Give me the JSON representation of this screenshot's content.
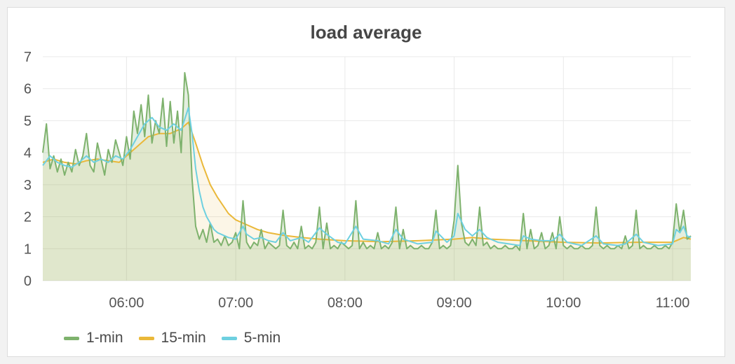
{
  "panel": {
    "title": "load average"
  },
  "chart_data": {
    "type": "line",
    "title": "load average",
    "xlabel": "",
    "ylabel": "",
    "ylim": [
      0,
      7
    ],
    "yticks": [
      "0",
      "1",
      "2",
      "3",
      "4",
      "5",
      "6",
      "7"
    ],
    "xticks": [
      "06:00",
      "07:00",
      "08:00",
      "09:00",
      "10:00",
      "11:00"
    ],
    "grid": true,
    "legend_position": "bottom-left",
    "series": [
      {
        "name": "1-min",
        "color": "#7eb26d",
        "fill": true,
        "points": [
          [
            "05:14",
            4.0
          ],
          [
            "05:16",
            4.9
          ],
          [
            "05:18",
            3.5
          ],
          [
            "05:20",
            3.9
          ],
          [
            "05:22",
            3.4
          ],
          [
            "05:24",
            3.8
          ],
          [
            "05:26",
            3.3
          ],
          [
            "05:28",
            3.7
          ],
          [
            "05:30",
            3.4
          ],
          [
            "05:32",
            4.1
          ],
          [
            "05:34",
            3.6
          ],
          [
            "05:36",
            3.9
          ],
          [
            "05:38",
            4.6
          ],
          [
            "05:40",
            3.6
          ],
          [
            "05:42",
            3.4
          ],
          [
            "05:44",
            4.3
          ],
          [
            "05:46",
            3.8
          ],
          [
            "05:48",
            3.3
          ],
          [
            "05:50",
            4.1
          ],
          [
            "05:52",
            3.7
          ],
          [
            "05:54",
            4.4
          ],
          [
            "05:56",
            4.0
          ],
          [
            "05:58",
            3.6
          ],
          [
            "06:00",
            4.5
          ],
          [
            "06:02",
            3.8
          ],
          [
            "06:04",
            5.3
          ],
          [
            "06:06",
            4.6
          ],
          [
            "06:08",
            5.5
          ],
          [
            "06:10",
            4.5
          ],
          [
            "06:12",
            5.8
          ],
          [
            "06:14",
            4.3
          ],
          [
            "06:16",
            5.0
          ],
          [
            "06:18",
            4.6
          ],
          [
            "06:20",
            5.7
          ],
          [
            "06:22",
            4.2
          ],
          [
            "06:24",
            5.6
          ],
          [
            "06:26",
            4.3
          ],
          [
            "06:28",
            5.3
          ],
          [
            "06:30",
            4.0
          ],
          [
            "06:32",
            6.5
          ],
          [
            "06:34",
            5.8
          ],
          [
            "06:36",
            3.2
          ],
          [
            "06:38",
            1.7
          ],
          [
            "06:40",
            1.3
          ],
          [
            "06:42",
            1.6
          ],
          [
            "06:44",
            1.2
          ],
          [
            "06:46",
            1.8
          ],
          [
            "06:48",
            1.2
          ],
          [
            "06:50",
            1.3
          ],
          [
            "06:52",
            1.1
          ],
          [
            "06:54",
            1.4
          ],
          [
            "06:56",
            1.1
          ],
          [
            "06:58",
            1.2
          ],
          [
            "07:00",
            1.5
          ],
          [
            "07:02",
            1.0
          ],
          [
            "07:04",
            2.5
          ],
          [
            "07:06",
            1.2
          ],
          [
            "07:08",
            1.0
          ],
          [
            "07:10",
            1.2
          ],
          [
            "07:12",
            1.1
          ],
          [
            "07:14",
            1.6
          ],
          [
            "07:16",
            1.0
          ],
          [
            "07:18",
            1.2
          ],
          [
            "07:20",
            1.1
          ],
          [
            "07:22",
            1.0
          ],
          [
            "07:24",
            1.1
          ],
          [
            "07:26",
            2.2
          ],
          [
            "07:28",
            1.1
          ],
          [
            "07:30",
            1.0
          ],
          [
            "07:32",
            1.2
          ],
          [
            "07:34",
            1.0
          ],
          [
            "07:36",
            1.7
          ],
          [
            "07:38",
            1.0
          ],
          [
            "07:40",
            1.1
          ],
          [
            "07:42",
            1.0
          ],
          [
            "07:44",
            1.2
          ],
          [
            "07:46",
            2.3
          ],
          [
            "07:48",
            1.0
          ],
          [
            "07:50",
            1.8
          ],
          [
            "07:52",
            1.0
          ],
          [
            "07:54",
            1.1
          ],
          [
            "07:56",
            1.0
          ],
          [
            "07:58",
            1.2
          ],
          [
            "08:00",
            1.1
          ],
          [
            "08:02",
            1.0
          ],
          [
            "08:04",
            1.1
          ],
          [
            "08:06",
            2.5
          ],
          [
            "08:08",
            1.0
          ],
          [
            "08:10",
            1.2
          ],
          [
            "08:12",
            1.0
          ],
          [
            "08:14",
            1.1
          ],
          [
            "08:16",
            1.0
          ],
          [
            "08:18",
            1.5
          ],
          [
            "08:20",
            1.0
          ],
          [
            "08:22",
            1.1
          ],
          [
            "08:24",
            1.0
          ],
          [
            "08:26",
            1.2
          ],
          [
            "08:28",
            2.3
          ],
          [
            "08:30",
            1.0
          ],
          [
            "08:32",
            1.6
          ],
          [
            "08:34",
            1.0
          ],
          [
            "08:36",
            1.1
          ],
          [
            "08:38",
            1.0
          ],
          [
            "08:40",
            1.0
          ],
          [
            "08:42",
            1.1
          ],
          [
            "08:44",
            1.0
          ],
          [
            "08:46",
            1.0
          ],
          [
            "08:48",
            1.2
          ],
          [
            "08:50",
            2.2
          ],
          [
            "08:52",
            1.0
          ],
          [
            "08:54",
            1.1
          ],
          [
            "08:56",
            1.0
          ],
          [
            "08:58",
            1.1
          ],
          [
            "09:00",
            1.9
          ],
          [
            "09:02",
            3.6
          ],
          [
            "09:04",
            1.8
          ],
          [
            "09:06",
            1.2
          ],
          [
            "09:08",
            1.1
          ],
          [
            "09:10",
            1.3
          ],
          [
            "09:12",
            1.1
          ],
          [
            "09:14",
            2.3
          ],
          [
            "09:16",
            1.1
          ],
          [
            "09:18",
            1.2
          ],
          [
            "09:20",
            1.0
          ],
          [
            "09:22",
            1.1
          ],
          [
            "09:24",
            1.0
          ],
          [
            "09:26",
            1.0
          ],
          [
            "09:28",
            1.1
          ],
          [
            "09:30",
            1.0
          ],
          [
            "09:32",
            1.0
          ],
          [
            "09:34",
            1.1
          ],
          [
            "09:36",
            0.95
          ],
          [
            "09:38",
            2.1
          ],
          [
            "09:40",
            1.0
          ],
          [
            "09:42",
            1.6
          ],
          [
            "09:44",
            1.0
          ],
          [
            "09:46",
            1.1
          ],
          [
            "09:48",
            1.5
          ],
          [
            "09:50",
            1.0
          ],
          [
            "09:52",
            1.1
          ],
          [
            "09:54",
            1.5
          ],
          [
            "09:56",
            1.0
          ],
          [
            "09:58",
            2.0
          ],
          [
            "10:00",
            1.1
          ],
          [
            "10:02",
            1.0
          ],
          [
            "10:04",
            1.1
          ],
          [
            "10:06",
            1.0
          ],
          [
            "10:08",
            1.0
          ],
          [
            "10:10",
            1.1
          ],
          [
            "10:12",
            1.0
          ],
          [
            "10:14",
            1.0
          ],
          [
            "10:16",
            1.1
          ],
          [
            "10:18",
            2.3
          ],
          [
            "10:20",
            1.1
          ],
          [
            "10:22",
            1.0
          ],
          [
            "10:24",
            1.1
          ],
          [
            "10:26",
            1.0
          ],
          [
            "10:28",
            1.0
          ],
          [
            "10:30",
            1.1
          ],
          [
            "10:32",
            1.0
          ],
          [
            "10:34",
            1.4
          ],
          [
            "10:36",
            1.0
          ],
          [
            "10:38",
            1.1
          ],
          [
            "10:40",
            2.2
          ],
          [
            "10:42",
            1.0
          ],
          [
            "10:44",
            1.1
          ],
          [
            "10:46",
            1.0
          ],
          [
            "10:48",
            1.0
          ],
          [
            "10:50",
            1.1
          ],
          [
            "10:52",
            1.0
          ],
          [
            "10:54",
            1.0
          ],
          [
            "10:56",
            1.1
          ],
          [
            "10:58",
            1.0
          ],
          [
            "11:00",
            1.2
          ],
          [
            "11:02",
            2.4
          ],
          [
            "11:04",
            1.5
          ],
          [
            "11:06",
            2.2
          ],
          [
            "11:08",
            1.3
          ],
          [
            "11:10",
            1.4
          ]
        ]
      },
      {
        "name": "15-min",
        "color": "#eab839",
        "fill": true,
        "points": [
          [
            "05:14",
            3.7
          ],
          [
            "05:20",
            3.8
          ],
          [
            "05:26",
            3.7
          ],
          [
            "05:32",
            3.65
          ],
          [
            "05:38",
            3.75
          ],
          [
            "05:44",
            3.8
          ],
          [
            "05:50",
            3.75
          ],
          [
            "05:56",
            3.7
          ],
          [
            "06:00",
            3.9
          ],
          [
            "06:06",
            4.2
          ],
          [
            "06:12",
            4.5
          ],
          [
            "06:18",
            4.6
          ],
          [
            "06:24",
            4.6
          ],
          [
            "06:30",
            4.75
          ],
          [
            "06:34",
            4.95
          ],
          [
            "06:38",
            4.3
          ],
          [
            "06:42",
            3.6
          ],
          [
            "06:46",
            3.0
          ],
          [
            "06:50",
            2.6
          ],
          [
            "06:56",
            2.1
          ],
          [
            "07:00",
            1.9
          ],
          [
            "07:06",
            1.75
          ],
          [
            "07:12",
            1.6
          ],
          [
            "07:18",
            1.5
          ],
          [
            "07:26",
            1.42
          ],
          [
            "07:36",
            1.35
          ],
          [
            "07:46",
            1.3
          ],
          [
            "08:00",
            1.25
          ],
          [
            "08:20",
            1.22
          ],
          [
            "08:40",
            1.25
          ],
          [
            "09:00",
            1.3
          ],
          [
            "09:10",
            1.35
          ],
          [
            "09:20",
            1.3
          ],
          [
            "09:40",
            1.25
          ],
          [
            "10:00",
            1.2
          ],
          [
            "10:20",
            1.18
          ],
          [
            "10:40",
            1.2
          ],
          [
            "11:00",
            1.2
          ],
          [
            "11:06",
            1.35
          ],
          [
            "11:10",
            1.3
          ]
        ]
      },
      {
        "name": "5-min",
        "color": "#6ed0e0",
        "fill": false,
        "points": [
          [
            "05:14",
            3.6
          ],
          [
            "05:18",
            3.9
          ],
          [
            "05:22",
            3.7
          ],
          [
            "05:26",
            3.6
          ],
          [
            "05:30",
            3.55
          ],
          [
            "05:34",
            3.7
          ],
          [
            "05:38",
            3.9
          ],
          [
            "05:42",
            3.7
          ],
          [
            "05:46",
            3.8
          ],
          [
            "05:50",
            3.7
          ],
          [
            "05:54",
            3.9
          ],
          [
            "05:58",
            3.8
          ],
          [
            "06:02",
            4.1
          ],
          [
            "06:06",
            4.5
          ],
          [
            "06:10",
            4.9
          ],
          [
            "06:14",
            5.1
          ],
          [
            "06:18",
            4.8
          ],
          [
            "06:22",
            4.7
          ],
          [
            "06:26",
            4.9
          ],
          [
            "06:30",
            4.7
          ],
          [
            "06:34",
            5.4
          ],
          [
            "06:36",
            4.6
          ],
          [
            "06:38",
            3.5
          ],
          [
            "06:40",
            2.8
          ],
          [
            "06:42",
            2.3
          ],
          [
            "06:44",
            2.0
          ],
          [
            "06:46",
            1.8
          ],
          [
            "06:48",
            1.6
          ],
          [
            "06:50",
            1.5
          ],
          [
            "06:52",
            1.45
          ],
          [
            "06:56",
            1.35
          ],
          [
            "07:00",
            1.3
          ],
          [
            "07:04",
            1.7
          ],
          [
            "07:06",
            1.45
          ],
          [
            "07:10",
            1.3
          ],
          [
            "07:14",
            1.35
          ],
          [
            "07:18",
            1.25
          ],
          [
            "07:22",
            1.2
          ],
          [
            "07:26",
            1.5
          ],
          [
            "07:30",
            1.25
          ],
          [
            "07:36",
            1.35
          ],
          [
            "07:40",
            1.2
          ],
          [
            "07:46",
            1.65
          ],
          [
            "07:50",
            1.45
          ],
          [
            "07:56",
            1.2
          ],
          [
            "08:00",
            1.15
          ],
          [
            "08:06",
            1.7
          ],
          [
            "08:10",
            1.3
          ],
          [
            "08:18",
            1.25
          ],
          [
            "08:24",
            1.15
          ],
          [
            "08:28",
            1.6
          ],
          [
            "08:32",
            1.3
          ],
          [
            "08:40",
            1.15
          ],
          [
            "08:48",
            1.2
          ],
          [
            "08:50",
            1.55
          ],
          [
            "08:56",
            1.2
          ],
          [
            "09:00",
            1.4
          ],
          [
            "09:02",
            2.1
          ],
          [
            "09:06",
            1.6
          ],
          [
            "09:10",
            1.4
          ],
          [
            "09:14",
            1.6
          ],
          [
            "09:18",
            1.35
          ],
          [
            "09:24",
            1.2
          ],
          [
            "09:30",
            1.15
          ],
          [
            "09:36",
            1.1
          ],
          [
            "09:38",
            1.4
          ],
          [
            "09:42",
            1.3
          ],
          [
            "09:48",
            1.25
          ],
          [
            "09:54",
            1.25
          ],
          [
            "09:58",
            1.45
          ],
          [
            "10:02",
            1.2
          ],
          [
            "10:10",
            1.1
          ],
          [
            "10:18",
            1.4
          ],
          [
            "10:22",
            1.15
          ],
          [
            "10:30",
            1.1
          ],
          [
            "10:34",
            1.15
          ],
          [
            "10:40",
            1.45
          ],
          [
            "10:44",
            1.2
          ],
          [
            "10:52",
            1.1
          ],
          [
            "11:00",
            1.15
          ],
          [
            "11:02",
            1.6
          ],
          [
            "11:04",
            1.5
          ],
          [
            "11:06",
            1.7
          ],
          [
            "11:08",
            1.4
          ],
          [
            "11:10",
            1.35
          ]
        ]
      }
    ]
  }
}
